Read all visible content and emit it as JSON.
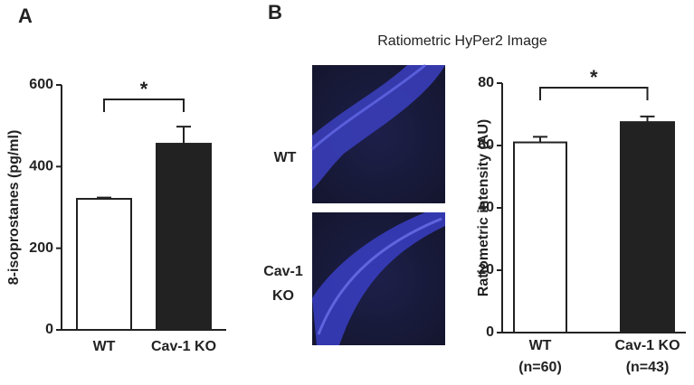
{
  "panel_labels": [
    "A",
    "B"
  ],
  "image_panel": {
    "title": "Ratiometric HyPer2 Image",
    "row_labels": [
      [
        "WT"
      ],
      [
        "Cav-1",
        "KO"
      ]
    ]
  },
  "chart_data": [
    {
      "type": "bar",
      "ylabel": "8-isoprostanes (pg/ml)",
      "categories": [
        "WT",
        "Cav-1 KO"
      ],
      "series": [
        {
          "values": [
            321,
            456
          ],
          "errors": [
            3,
            42
          ],
          "colors": [
            "#ffffff",
            "#222222"
          ]
        }
      ],
      "ylim": [
        0,
        600
      ],
      "yticks": [
        0,
        200,
        400,
        600
      ],
      "annotation": "*"
    },
    {
      "type": "bar",
      "ylabel": "Ratiometric intensity (AU)",
      "categories": [
        "WT",
        "Cav-1 KO"
      ],
      "sample_sizes": [
        "(n=60)",
        "(n=43)"
      ],
      "series": [
        {
          "values": [
            61,
            67.5
          ],
          "errors": [
            1.8,
            1.8
          ],
          "colors": [
            "#ffffff",
            "#222222"
          ]
        }
      ],
      "ylim": [
        0,
        80
      ],
      "yticks": [
        0,
        20,
        40,
        60,
        80
      ],
      "annotation": "*"
    }
  ]
}
